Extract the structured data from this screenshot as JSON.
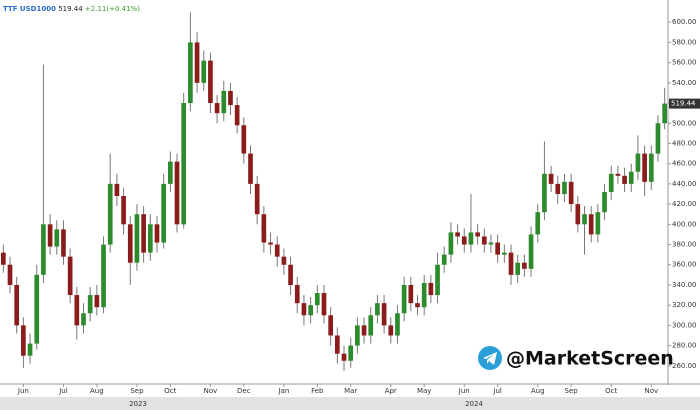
{
  "header": {
    "symbol": "TTF USD1000",
    "price": "519.44",
    "change": "+2.11(+0.41%)"
  },
  "watermark": "@MarketScreen",
  "chart_data": {
    "type": "candlestick",
    "up_color": "#2d8a2d",
    "down_color": "#8b1c1c",
    "ylim": [
      243,
      617
    ],
    "yticks": [
      {
        "value": 260,
        "label": "260.00"
      },
      {
        "value": 280,
        "label": "280.00"
      },
      {
        "value": 300,
        "label": "300.00"
      },
      {
        "value": 320,
        "label": "320.00"
      },
      {
        "value": 340,
        "label": "340.00"
      },
      {
        "value": 360,
        "label": "360.00"
      },
      {
        "value": 380,
        "label": "380.00"
      },
      {
        "value": 400,
        "label": "400.00"
      },
      {
        "value": 420,
        "label": "420.00"
      },
      {
        "value": 440,
        "label": "440.00"
      },
      {
        "value": 460,
        "label": "460.00"
      },
      {
        "value": 480,
        "label": "480.00"
      },
      {
        "value": 500,
        "label": "500.00"
      },
      {
        "value": 520,
        "label": "520.00"
      },
      {
        "value": 540,
        "label": "540.00"
      },
      {
        "value": 560,
        "label": "560.00"
      },
      {
        "value": 580,
        "label": "580.00"
      },
      {
        "value": 600,
        "label": "600.00"
      }
    ],
    "years": [
      "2023",
      "2024"
    ],
    "categories": [
      null,
      null,
      null,
      "Jun",
      null,
      null,
      null,
      null,
      null,
      "Jul",
      null,
      null,
      null,
      null,
      "Aug",
      null,
      null,
      null,
      null,
      null,
      "Sep",
      null,
      null,
      null,
      null,
      "Oct",
      null,
      null,
      null,
      null,
      null,
      "Nov",
      null,
      null,
      null,
      null,
      "Dec",
      null,
      null,
      null,
      null,
      null,
      "Jan",
      null,
      null,
      null,
      null,
      "Feb",
      null,
      null,
      null,
      null,
      "Mar",
      null,
      null,
      null,
      null,
      null,
      "Apr",
      null,
      null,
      null,
      null,
      "May",
      null,
      null,
      null,
      null,
      null,
      "Jun",
      null,
      null,
      null,
      null,
      "Jul",
      null,
      null,
      null,
      null,
      null,
      "Aug",
      null,
      null,
      null,
      null,
      "Sep",
      null,
      null,
      null,
      null,
      null,
      "Oct",
      null,
      null,
      null,
      null,
      null,
      "Nov",
      null,
      null
    ],
    "open": [
      372,
      360,
      340,
      300,
      270,
      282,
      350,
      400,
      378,
      395,
      368,
      330,
      300,
      312,
      330,
      318,
      380,
      440,
      428,
      400,
      362,
      410,
      372,
      400,
      382,
      440,
      462,
      400,
      520,
      580,
      540,
      562,
      520,
      510,
      532,
      518,
      498,
      470,
      440,
      410,
      382,
      380,
      368,
      360,
      340,
      322,
      310,
      320,
      332,
      310,
      290,
      272,
      265,
      280,
      300,
      290,
      310,
      322,
      300,
      290,
      312,
      340,
      322,
      318,
      342,
      330,
      360,
      370,
      392,
      388,
      380,
      392,
      388,
      380,
      382,
      370,
      372,
      350,
      362,
      356,
      390,
      412,
      450,
      440,
      430,
      442,
      420,
      400,
      410,
      390,
      412,
      432,
      450,
      448,
      440,
      452,
      470,
      442,
      470,
      500
    ],
    "high": [
      380,
      368,
      348,
      308,
      292,
      360,
      558,
      410,
      404,
      404,
      376,
      338,
      322,
      338,
      340,
      388,
      470,
      450,
      436,
      408,
      420,
      418,
      410,
      408,
      450,
      472,
      470,
      530,
      610,
      590,
      572,
      570,
      528,
      542,
      540,
      526,
      506,
      478,
      448,
      418,
      392,
      388,
      376,
      368,
      348,
      330,
      328,
      340,
      340,
      318,
      298,
      280,
      288,
      308,
      308,
      318,
      330,
      330,
      308,
      320,
      348,
      348,
      330,
      350,
      350,
      372,
      378,
      402,
      400,
      396,
      430,
      400,
      396,
      390,
      390,
      380,
      380,
      370,
      370,
      398,
      420,
      482,
      458,
      448,
      450,
      450,
      428,
      418,
      418,
      420,
      440,
      458,
      458,
      456,
      460,
      488,
      478,
      478,
      508,
      535
    ],
    "low": [
      352,
      332,
      292,
      258,
      262,
      276,
      342,
      370,
      370,
      360,
      322,
      286,
      292,
      304,
      310,
      312,
      372,
      418,
      390,
      340,
      354,
      362,
      364,
      372,
      376,
      432,
      392,
      396,
      512,
      530,
      532,
      510,
      500,
      502,
      508,
      490,
      460,
      430,
      400,
      372,
      370,
      358,
      350,
      330,
      312,
      300,
      302,
      312,
      302,
      280,
      262,
      255,
      258,
      272,
      282,
      282,
      302,
      292,
      282,
      282,
      304,
      314,
      310,
      310,
      322,
      322,
      352,
      362,
      380,
      372,
      372,
      380,
      372,
      372,
      362,
      362,
      340,
      342,
      348,
      348,
      382,
      404,
      432,
      420,
      422,
      412,
      392,
      370,
      382,
      382,
      404,
      424,
      440,
      432,
      432,
      444,
      428,
      434,
      462,
      494
    ],
    "close": [
      360,
      340,
      300,
      270,
      282,
      350,
      400,
      378,
      395,
      368,
      330,
      300,
      312,
      330,
      318,
      380,
      440,
      428,
      400,
      362,
      410,
      372,
      400,
      382,
      440,
      462,
      400,
      520,
      580,
      540,
      562,
      520,
      510,
      532,
      518,
      498,
      470,
      440,
      410,
      382,
      380,
      368,
      360,
      340,
      322,
      310,
      320,
      332,
      310,
      290,
      272,
      265,
      280,
      300,
      290,
      310,
      322,
      300,
      290,
      312,
      340,
      322,
      318,
      342,
      330,
      360,
      370,
      392,
      388,
      380,
      392,
      388,
      380,
      382,
      370,
      372,
      350,
      362,
      356,
      390,
      412,
      450,
      440,
      430,
      442,
      420,
      400,
      410,
      390,
      412,
      432,
      450,
      448,
      440,
      452,
      470,
      442,
      470,
      500,
      519.44
    ]
  }
}
